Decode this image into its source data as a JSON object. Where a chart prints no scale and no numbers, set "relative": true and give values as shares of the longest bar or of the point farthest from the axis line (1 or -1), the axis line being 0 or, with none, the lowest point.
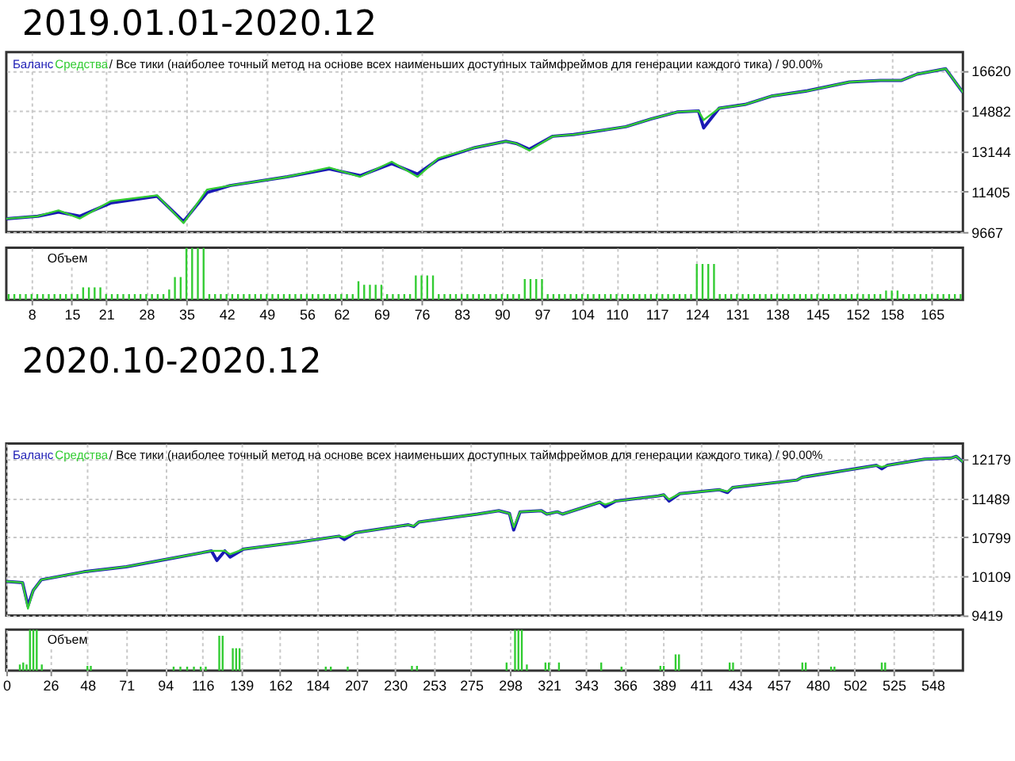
{
  "chart_data": [
    {
      "type": "line",
      "title": "2019.01.01-2020.12",
      "legend": "top left",
      "grid": true,
      "tick_labels": "y",
      "annotations": [
        "/ Все тики (наиболее точный метод на основе всех наименьших доступных таймфреймов для генерации каждого тика) / 90.00%"
      ],
      "x": [
        3.6,
        9.1,
        12.7,
        16.4,
        21.8,
        29.9,
        34.5,
        38.6,
        42.6,
        52.6,
        59.9,
        65.3,
        70.8,
        75.3,
        78.9,
        85.3,
        90.7,
        92.5,
        94.8,
        98.9,
        102.5,
        111.6,
        116.1,
        120.7,
        124.3,
        125.2,
        127.9,
        132.4,
        137,
        143.3,
        150.6,
        156,
        159.7,
        162.4,
        167.4,
        170.4
      ],
      "series": [
        {
          "name": "Баланс",
          "color": "#1a1ab4",
          "values": [
            10240,
            10350,
            10530,
            10350,
            10920,
            11210,
            10120,
            11370,
            11670,
            12050,
            12390,
            12100,
            12620,
            12170,
            12800,
            13310,
            13580,
            13490,
            13240,
            13800,
            13870,
            14210,
            14550,
            14850,
            14890,
            14160,
            15010,
            15170,
            15530,
            15760,
            16140,
            16210,
            16210,
            16480,
            16710,
            15690
          ]
        },
        {
          "name": "Средства",
          "color": "#33cc33",
          "values": [
            10240,
            10350,
            10600,
            10250,
            11000,
            11250,
            10050,
            11500,
            11670,
            12050,
            12450,
            12050,
            12700,
            12050,
            12850,
            13310,
            13580,
            13490,
            13180,
            13800,
            13870,
            14210,
            14550,
            14850,
            14890,
            14500,
            15010,
            15170,
            15530,
            15760,
            16140,
            16210,
            16210,
            16480,
            16710,
            15690
          ]
        }
      ],
      "xlim": [
        3.6,
        170.4
      ],
      "xticks": [
        8,
        15,
        21,
        28,
        35,
        42,
        49,
        56,
        62,
        69,
        76,
        83,
        90,
        97,
        104,
        110,
        117,
        124,
        131,
        138,
        145,
        152,
        158,
        165
      ],
      "ylim": [
        9667,
        17430
      ],
      "yticks": [
        9667,
        11405,
        13144,
        14882,
        16620
      ]
    },
    {
      "type": "bar",
      "title": "Объем",
      "relative": true,
      "color": "#33cc33",
      "grid": "x",
      "tick_labels": "x",
      "x": [
        4,
        5,
        6,
        7,
        8,
        9,
        10,
        11,
        12,
        13,
        14,
        15,
        16,
        17,
        18,
        19,
        20,
        21,
        22,
        23,
        24,
        25,
        26,
        27,
        28,
        29,
        30,
        31,
        32,
        33,
        34,
        35,
        36,
        37,
        38,
        39,
        40,
        41,
        42,
        43,
        44,
        45,
        46,
        47,
        48,
        49,
        50,
        51,
        52,
        53,
        54,
        55,
        56,
        57,
        58,
        59,
        60,
        61,
        62,
        63,
        64,
        65,
        66,
        67,
        68,
        69,
        70,
        71,
        72,
        73,
        74,
        75,
        76,
        77,
        78,
        79,
        80,
        81,
        82,
        83,
        84,
        85,
        86,
        87,
        88,
        89,
        90,
        91,
        92,
        93,
        94,
        95,
        96,
        97,
        98,
        99,
        100,
        101,
        102,
        103,
        104,
        105,
        106,
        107,
        108,
        109,
        110,
        111,
        112,
        113,
        114,
        115,
        116,
        117,
        118,
        119,
        120,
        121,
        122,
        123,
        124,
        125,
        126,
        127,
        128,
        129,
        130,
        131,
        132,
        133,
        134,
        135,
        136,
        137,
        138,
        139,
        140,
        141,
        142,
        143,
        144,
        145,
        146,
        147,
        148,
        149,
        150,
        151,
        152,
        153,
        154,
        155,
        156,
        157,
        158,
        159,
        160,
        161,
        162,
        163,
        164,
        165,
        166,
        167,
        168,
        169,
        170
      ],
      "values": [
        0.11,
        0.11,
        0.11,
        0.11,
        0.11,
        0.11,
        0.11,
        0.11,
        0.11,
        0.11,
        0.11,
        0.11,
        0.11,
        0.24,
        0.24,
        0.24,
        0.24,
        0.11,
        0.11,
        0.11,
        0.11,
        0.11,
        0.11,
        0.11,
        0.11,
        0.11,
        0.11,
        0.11,
        0.2,
        0.44,
        0.44,
        1,
        1,
        1,
        1,
        0.11,
        0.11,
        0.11,
        0.11,
        0.11,
        0.11,
        0.11,
        0.11,
        0.11,
        0.11,
        0.11,
        0.11,
        0.11,
        0.11,
        0.11,
        0.11,
        0.11,
        0.11,
        0.11,
        0.11,
        0.11,
        0.11,
        0.11,
        0.11,
        0.11,
        0.11,
        0.36,
        0.29,
        0.29,
        0.29,
        0.29,
        0.11,
        0.11,
        0.11,
        0.11,
        0.11,
        0.47,
        0.47,
        0.47,
        0.47,
        0.11,
        0.11,
        0.11,
        0.11,
        0.11,
        0.11,
        0.11,
        0.11,
        0.11,
        0.11,
        0.11,
        0.11,
        0.11,
        0.11,
        0.11,
        0.4,
        0.4,
        0.4,
        0.4,
        0.11,
        0.11,
        0.11,
        0.11,
        0.11,
        0.11,
        0.11,
        0.11,
        0.11,
        0.11,
        0.11,
        0.11,
        0.11,
        0.11,
        0.11,
        0.11,
        0.11,
        0.11,
        0.11,
        0.11,
        0.11,
        0.11,
        0.11,
        0.11,
        0.11,
        0.11,
        0.69,
        0.69,
        0.69,
        0.69,
        0.11,
        0.11,
        0.11,
        0.11,
        0.11,
        0.11,
        0.11,
        0.11,
        0.11,
        0.11,
        0.11,
        0.11,
        0.11,
        0.11,
        0.11,
        0.11,
        0.11,
        0.11,
        0.11,
        0.11,
        0.11,
        0.11,
        0.11,
        0.11,
        0.11,
        0.11,
        0.11,
        0.11,
        0.11,
        0.18,
        0.18,
        0.18,
        0.11,
        0.11,
        0.11,
        0.11,
        0.11,
        0.11,
        0.11,
        0.11,
        0.11,
        0.11,
        0.11
      ],
      "xlim": [
        3.6,
        170.4
      ],
      "xticks": [
        8,
        15,
        21,
        28,
        35,
        42,
        49,
        56,
        62,
        69,
        76,
        83,
        90,
        97,
        104,
        110,
        117,
        124,
        131,
        138,
        145,
        152,
        158,
        165
      ]
    },
    {
      "type": "line",
      "title": "2020.10-2020.12",
      "legend": "top left",
      "grid": true,
      "tick_labels": "y",
      "annotations": [
        "/ Все тики (наиболее точный метод на основе всех наименьших доступных таймфреймов для генерации каждого тика) / 90.00%"
      ],
      "x": [
        0,
        9.6,
        12.8,
        15.9,
        20.7,
        45.8,
        71,
        96.2,
        121.4,
        124.6,
        129.3,
        132.4,
        140.3,
        171.8,
        196.9,
        200,
        206.4,
        237.9,
        241,
        244.1,
        278.8,
        291.4,
        297.7,
        300.2,
        304,
        316.6,
        319.8,
        326,
        329.1,
        351.2,
        354.4,
        360.7,
        385.8,
        389,
        392.1,
        398.4,
        422,
        426.7,
        429.8,
        467.7,
        470.9,
        514.9,
        518,
        521.2,
        543.3,
        559,
        562.1,
        566
      ],
      "series": [
        {
          "name": "Баланс",
          "color": "#1a1ab4",
          "values": [
            10020,
            10000,
            9590,
            9860,
            10050,
            10190,
            10280,
            10420,
            10560,
            10390,
            10560,
            10450,
            10590,
            10710,
            10820,
            10760,
            10880,
            11020,
            10990,
            11070,
            11210,
            11270,
            11220,
            10930,
            11250,
            11270,
            11210,
            11250,
            11210,
            11420,
            11340,
            11440,
            11530,
            11550,
            11440,
            11570,
            11640,
            11590,
            11680,
            11810,
            11860,
            12070,
            12010,
            12070,
            12180,
            12200,
            12230,
            12130
          ]
        },
        {
          "name": "Средства",
          "color": "#33cc33",
          "values": [
            10020,
            10000,
            9540,
            9860,
            10050,
            10190,
            10280,
            10420,
            10560,
            10560,
            10560,
            10500,
            10590,
            10710,
            10820,
            10800,
            10880,
            11020,
            11000,
            11070,
            11210,
            11270,
            11220,
            10980,
            11250,
            11270,
            11210,
            11250,
            11210,
            11420,
            11380,
            11440,
            11530,
            11550,
            11470,
            11570,
            11640,
            11610,
            11680,
            11810,
            11860,
            12070,
            12040,
            12070,
            12180,
            12200,
            12230,
            12130
          ]
        }
      ],
      "xlim": [
        0,
        566
      ],
      "xticks": [
        0,
        26,
        48,
        71,
        94,
        116,
        139,
        162,
        184,
        207,
        230,
        253,
        275,
        298,
        321,
        343,
        366,
        389,
        411,
        434,
        457,
        480,
        502,
        525,
        548
      ],
      "ylim": [
        9419,
        12457
      ],
      "yticks": [
        9419,
        10109,
        10799,
        11489,
        12179
      ]
    },
    {
      "type": "bar",
      "title": "Объем",
      "relative": true,
      "color": "#33cc33",
      "grid": "x",
      "tick_labels": "x",
      "x": [
        8,
        10,
        12,
        14,
        16,
        18,
        21,
        48,
        50,
        99,
        103,
        107,
        111,
        115,
        118,
        126,
        128,
        134,
        136,
        138,
        189,
        192,
        202,
        240,
        243,
        296,
        301,
        303,
        305,
        308,
        319,
        321,
        327,
        352,
        364,
        387,
        389,
        396,
        398,
        428,
        430,
        471,
        473,
        488,
        490,
        518,
        520
      ],
      "values": [
        0.15,
        0.2,
        0.15,
        1,
        1,
        1,
        0.15,
        0.12,
        0.12,
        0.1,
        0.1,
        0.1,
        0.1,
        0.1,
        0.1,
        0.85,
        0.85,
        0.55,
        0.55,
        0.55,
        0.1,
        0.1,
        0.1,
        0.12,
        0.12,
        0.2,
        1,
        1,
        1,
        0.15,
        0.2,
        0.2,
        0.2,
        0.2,
        0.1,
        0.12,
        0.12,
        0.4,
        0.4,
        0.2,
        0.2,
        0.2,
        0.2,
        0.1,
        0.1,
        0.2,
        0.2
      ],
      "xlim": [
        0,
        566
      ],
      "xticks": [
        0,
        26,
        48,
        71,
        94,
        116,
        139,
        162,
        184,
        207,
        230,
        253,
        275,
        298,
        321,
        343,
        366,
        389,
        411,
        434,
        457,
        480,
        502,
        525,
        548
      ]
    }
  ]
}
